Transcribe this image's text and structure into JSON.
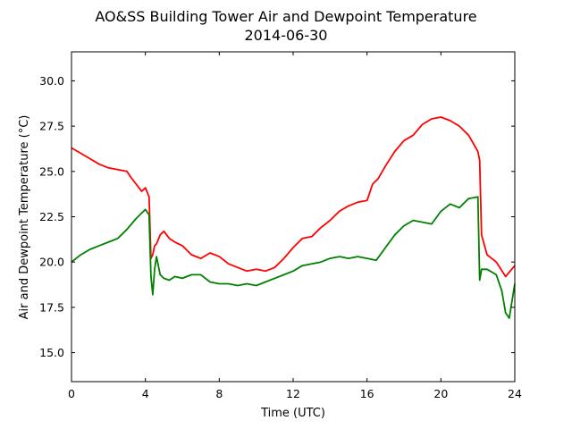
{
  "chart_data": {
    "type": "line",
    "title": "AO&SS Building Tower Air and Dewpoint Temperature",
    "subtitle": "2014-06-30",
    "xlabel": "Time (UTC)",
    "ylabel": "Air and Dewpoint Temperature (°C)",
    "xlim": [
      0,
      24
    ],
    "ylim": [
      13.4,
      31.6
    ],
    "xticks": [
      0,
      4,
      8,
      12,
      16,
      20,
      24
    ],
    "yticks": [
      15.0,
      17.5,
      20.0,
      22.5,
      25.0,
      27.5,
      30.0
    ],
    "yticks_labels": [
      "15.0",
      "17.5",
      "20.0",
      "22.5",
      "25.0",
      "27.5",
      "30.0"
    ],
    "grid": false,
    "legend": "none",
    "series": [
      {
        "color": "#ff0000",
        "x": [
          0,
          0.5,
          1.0,
          1.5,
          2.0,
          2.5,
          3.0,
          3.2,
          3.5,
          3.8,
          4.0,
          4.2,
          4.3,
          4.4,
          4.5,
          4.6,
          4.8,
          5.0,
          5.3,
          5.6,
          6.0,
          6.5,
          7.0,
          7.5,
          8.0,
          8.5,
          9.0,
          9.5,
          10.0,
          10.5,
          11.0,
          11.5,
          12.0,
          12.5,
          13.0,
          13.5,
          14.0,
          14.5,
          15.0,
          15.5,
          16.0,
          16.3,
          16.6,
          17.0,
          17.5,
          18.0,
          18.5,
          19.0,
          19.5,
          20.0,
          20.5,
          21.0,
          21.5,
          22.0,
          22.1,
          22.2,
          22.5,
          23.0,
          23.5,
          24.0
        ],
        "y": [
          26.3,
          26.0,
          25.7,
          25.4,
          25.2,
          25.1,
          25.0,
          24.7,
          24.3,
          23.9,
          24.1,
          23.6,
          20.2,
          20.4,
          20.9,
          21.0,
          21.5,
          21.7,
          21.3,
          21.1,
          20.9,
          20.4,
          20.2,
          20.5,
          20.3,
          19.9,
          19.7,
          19.5,
          19.6,
          19.5,
          19.7,
          20.2,
          20.8,
          21.3,
          21.4,
          21.9,
          22.3,
          22.8,
          23.1,
          23.3,
          23.4,
          24.3,
          24.6,
          25.3,
          26.1,
          26.7,
          27.0,
          27.6,
          27.9,
          28.0,
          27.8,
          27.5,
          27.0,
          26.1,
          25.6,
          21.5,
          20.4,
          20.0,
          19.2,
          19.8
        ]
      },
      {
        "color": "#008000",
        "x": [
          0,
          0.5,
          1.0,
          1.5,
          2.0,
          2.5,
          3.0,
          3.5,
          3.8,
          4.0,
          4.2,
          4.3,
          4.4,
          4.5,
          4.6,
          4.8,
          5.0,
          5.3,
          5.6,
          6.0,
          6.5,
          7.0,
          7.5,
          8.0,
          8.5,
          9.0,
          9.5,
          10.0,
          10.5,
          11.0,
          11.5,
          12.0,
          12.5,
          13.0,
          13.5,
          14.0,
          14.5,
          15.0,
          15.5,
          16.0,
          16.5,
          17.0,
          17.5,
          18.0,
          18.5,
          19.0,
          19.5,
          20.0,
          20.5,
          21.0,
          21.5,
          22.0,
          22.1,
          22.2,
          22.5,
          23.0,
          23.3,
          23.5,
          23.7,
          24.0
        ],
        "y": [
          20.0,
          20.4,
          20.7,
          20.9,
          21.1,
          21.3,
          21.8,
          22.4,
          22.7,
          22.9,
          22.6,
          19.2,
          18.2,
          19.6,
          20.3,
          19.3,
          19.1,
          19.0,
          19.2,
          19.1,
          19.3,
          19.3,
          18.9,
          18.8,
          18.8,
          18.7,
          18.8,
          18.7,
          18.9,
          19.1,
          19.3,
          19.5,
          19.8,
          19.9,
          20.0,
          20.2,
          20.3,
          20.2,
          20.3,
          20.2,
          20.1,
          20.8,
          21.5,
          22.0,
          22.3,
          22.2,
          22.1,
          22.8,
          23.2,
          23.0,
          23.5,
          23.6,
          19.0,
          19.6,
          19.6,
          19.3,
          18.4,
          17.2,
          16.9,
          18.8
        ]
      }
    ]
  }
}
